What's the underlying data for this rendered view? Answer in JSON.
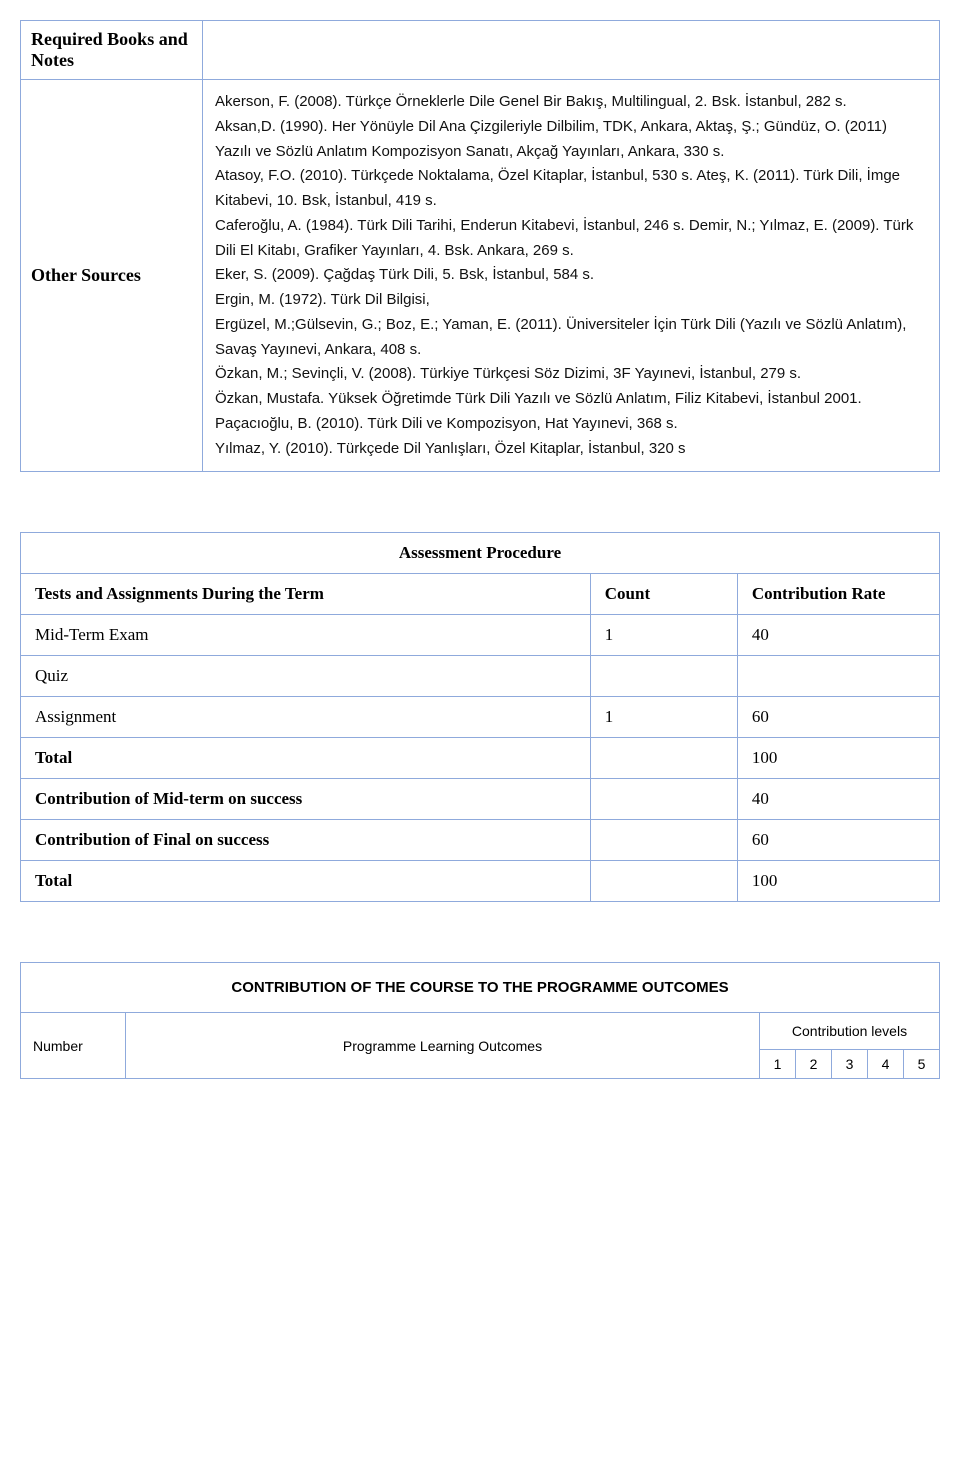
{
  "books_table": {
    "rows": [
      {
        "label": "Required Books and Notes",
        "content": ""
      },
      {
        "label": "Other Sources",
        "content": "Akerson, F. (2008). Türkçe Örneklerle Dile Genel Bir Bakış, Multilingual, 2. Bsk. İstanbul, 282 s.\nAksan,D. (1990). Her Yönüyle Dil Ana Çizgileriyle Dilbilim, TDK, Ankara, Aktaş, Ş.; Gündüz, O. (2011) Yazılı ve Sözlü Anlatım Kompozisyon Sanatı, Akçağ Yayınları, Ankara, 330 s.\nAtasoy, F.O. (2010). Türkçede Noktalama, Özel Kitaplar, İstanbul, 530 s. Ateş, K. (2011). Türk Dili, İmge Kitabevi, 10. Bsk, İstanbul, 419 s.\nCaferoğlu, A. (1984). Türk Dili Tarihi, Enderun Kitabevi, İstanbul, 246 s. Demir, N.; Yılmaz, E. (2009). Türk Dili El Kitabı, Grafiker Yayınları, 4. Bsk. Ankara, 269 s.\nEker, S. (2009). Çağdaş Türk Dili, 5. Bsk, İstanbul, 584 s.\nErgin, M. (1972). Türk Dil Bilgisi,\nErgüzel, M.;Gülsevin, G.; Boz, E.; Yaman, E. (2011). Üniversiteler İçin Türk Dili (Yazılı ve Sözlü Anlatım), Savaş Yayınevi, Ankara, 408 s.\nÖzkan, M.; Sevinçli, V. (2008). Türkiye Türkçesi Söz Dizimi, 3F Yayınevi, İstanbul, 279 s.\nÖzkan, Mustafa. Yüksek Öğretimde Türk Dili Yazılı ve Sözlü Anlatım, Filiz Kitabevi, İstanbul 2001.\nPaçacıoğlu, B. (2010). Türk Dili ve Kompozisyon, Hat Yayınevi, 368 s.\nYılmaz, Y. (2010). Türkçede Dil Yanlışları, Özel Kitaplar, İstanbul, 320 s"
      }
    ]
  },
  "assessment": {
    "title": "Assessment Procedure",
    "col_tests": "Tests and Assignments During the Term",
    "col_count": "Count",
    "col_rate": "Contribution Rate",
    "rows": [
      {
        "label": "Mid-Term Exam",
        "count": "1",
        "rate": "40",
        "bold": false
      },
      {
        "label": "Quiz",
        "count": "",
        "rate": "",
        "bold": false
      },
      {
        "label": "Assignment",
        "count": "1",
        "rate": "60",
        "bold": false
      },
      {
        "label": "Total",
        "count": "",
        "rate": "100",
        "bold": true
      },
      {
        "label": "Contribution of Mid-term on success",
        "count": "",
        "rate": "40",
        "bold": true
      },
      {
        "label": "Contribution of Final on success",
        "count": "",
        "rate": "60",
        "bold": true
      },
      {
        "label": "Total",
        "count": "",
        "rate": "100",
        "bold": true
      }
    ]
  },
  "contrib": {
    "title": "CONTRIBUTION OF THE COURSE TO THE PROGRAMME OUTCOMES",
    "col_number": "Number",
    "col_plo": "Programme Learning Outcomes",
    "levels_label": "Contribution levels",
    "levels": [
      "1",
      "2",
      "3",
      "4",
      "5"
    ]
  },
  "colors": {
    "border": "#8faadc",
    "background": "#ffffff",
    "text": "#000000"
  }
}
